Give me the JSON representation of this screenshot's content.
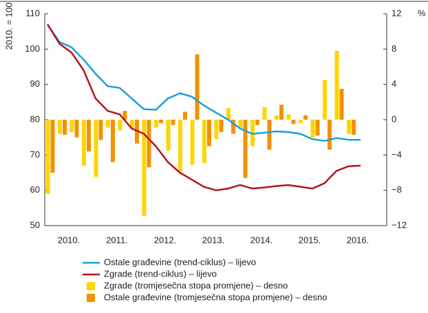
{
  "chart_data": {
    "type": "bar-line",
    "ylabel": "2010. = 100",
    "y2label": "%",
    "x_labels": [
      "2010.",
      "2011.",
      "2012.",
      "2013.",
      "2014.",
      "2015.",
      "2016."
    ],
    "categories": [
      null,
      null,
      null,
      null,
      null,
      null,
      null,
      null,
      null,
      null,
      null,
      null,
      null,
      null,
      null,
      null,
      null,
      null,
      null,
      null,
      null,
      null,
      null,
      null,
      null,
      null,
      null
    ],
    "ylim": [
      50,
      110
    ],
    "yticks": [
      50,
      60,
      70,
      80,
      90,
      100,
      110
    ],
    "y2lim": [
      -12,
      12
    ],
    "y2ticks": [
      {
        "value": -12,
        "label": "−12"
      },
      {
        "value": -8,
        "label": "−8"
      },
      {
        "value": -4,
        "label": "−4"
      },
      0,
      4,
      8,
      12
    ],
    "grid": false,
    "series": [
      {
        "name": "Ostale građevine (trend-ciklus) – lijevo",
        "type": "line",
        "axis": "y",
        "color": "#1a9fd9",
        "values": [
          107,
          102,
          100.5,
          97,
          93,
          89.5,
          89,
          86,
          83,
          82.8,
          86,
          87.5,
          86.5,
          84,
          82,
          80,
          77.5,
          76,
          76.3,
          76.7,
          76.5,
          76,
          74.5,
          74,
          74.8,
          74.3,
          74.3
        ]
      },
      {
        "name": "Zgrade (trend-ciklus) – lijevo",
        "type": "line",
        "axis": "y",
        "color": "#b5121b",
        "values": [
          107,
          101.5,
          99,
          94,
          86,
          82.5,
          81.5,
          77.5,
          76,
          72.5,
          68,
          65,
          63,
          61,
          60,
          60.5,
          61.5,
          60.5,
          60.8,
          61.2,
          61.5,
          61,
          60.5,
          62,
          65.5,
          66.8,
          67
        ]
      },
      {
        "name": "Zgrade (tromjesečna stopa promjene) – desno",
        "type": "bar",
        "axis": "y2",
        "color": "#ffd400",
        "values": [
          -8.4,
          -1.6,
          -1.4,
          -5.2,
          -6.5,
          -0.9,
          -1.2,
          -1.0,
          -10.9,
          -0.9,
          -3.5,
          -5.9,
          -5.1,
          -4.9,
          -2.2,
          1.3,
          -0.9,
          -3.0,
          1.4,
          0.5,
          0.6,
          -0.4,
          -2.0,
          4.5,
          7.8,
          -1.6,
          null
        ]
      },
      {
        "name": "Ostale građevine (tromjesečna stopa promjene) – desno",
        "type": "bar",
        "axis": "y2",
        "color": "#f39200",
        "values": [
          -6.0,
          -1.7,
          -2.0,
          -3.6,
          -2.3,
          -4.8,
          1.0,
          -2.7,
          -5.4,
          -0.4,
          -0.6,
          0.9,
          7.4,
          -3.0,
          -1.4,
          -1.6,
          -6.6,
          -0.6,
          -3.4,
          1.7,
          -0.5,
          0.5,
          -1.8,
          -3.4,
          3.5,
          -1.7,
          null
        ]
      }
    ]
  }
}
